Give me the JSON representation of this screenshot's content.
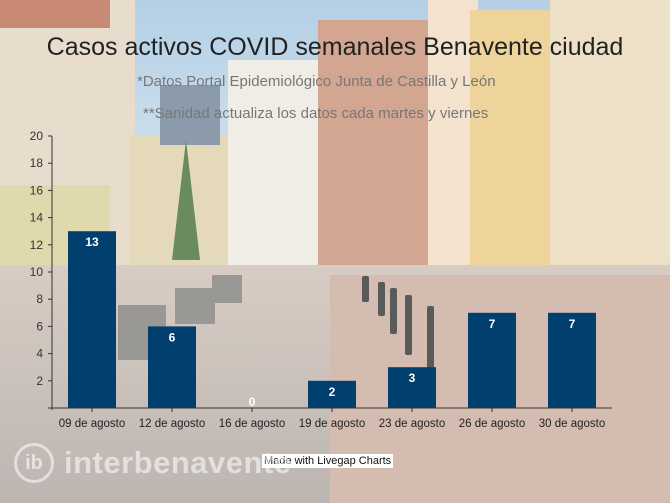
{
  "chart_data": {
    "type": "bar",
    "title": "Casos activos COVID semanales Benavente ciudad",
    "subtitles": [
      "*Datos Portal Epidemiológico Junta de Castilla y León",
      "**Sanidad actualiza los datos cada martes y viernes"
    ],
    "categories": [
      "09 de agosto",
      "12 de agosto",
      "16 de agosto",
      "19 de agosto",
      "23 de agosto",
      "26 de agosto",
      "30 de agosto"
    ],
    "values": [
      13,
      6,
      0,
      2,
      3,
      7,
      7
    ],
    "ylim": [
      0,
      20
    ],
    "yticks": [
      0,
      2,
      4,
      6,
      8,
      10,
      12,
      14,
      16,
      18,
      20
    ],
    "ytick_labels": [
      "",
      "2",
      "4",
      "6",
      "8",
      "10",
      "12",
      "14",
      "16",
      "18",
      "20"
    ],
    "data_labels": [
      "13",
      "6",
      "0",
      "2",
      "3",
      "7",
      "7"
    ],
    "xlabel": "",
    "ylabel": "",
    "grid": false,
    "legend": "none",
    "bar_color": "#003f6e"
  },
  "credit": "Made with Livegap Charts",
  "watermark": {
    "logo_mark": "ib",
    "text": "interbenavente"
  }
}
